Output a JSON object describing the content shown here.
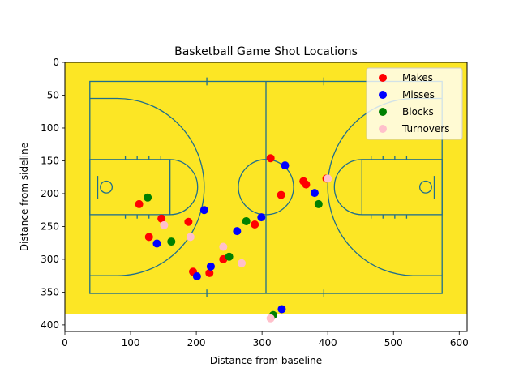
{
  "chart_data": {
    "type": "scatter",
    "title": "Basketball Game Shot Locations",
    "xlabel": "Distance from baseline",
    "ylabel": "Distance from sideline",
    "xlim": [
      0,
      612
    ],
    "ylim": [
      410,
      0
    ],
    "x_ticks": [
      0,
      100,
      200,
      300,
      400,
      500,
      600
    ],
    "y_ticks": [
      0,
      50,
      100,
      150,
      200,
      250,
      300,
      350,
      400
    ],
    "background_color": "#fce625",
    "court_line_color": "#1f6e8c",
    "court_extent": {
      "x": [
        0,
        612
      ],
      "y": [
        0,
        384
      ]
    },
    "legend_position": "top-right",
    "grid": false,
    "series": [
      {
        "name": "Makes",
        "color": "#ff0000",
        "points": [
          [
            113,
            216
          ],
          [
            128,
            266
          ],
          [
            147,
            238
          ],
          [
            188,
            243
          ],
          [
            195,
            319
          ],
          [
            220,
            321
          ],
          [
            241,
            300
          ],
          [
            289,
            247
          ],
          [
            313,
            146
          ],
          [
            329,
            202
          ],
          [
            363,
            181
          ],
          [
            367,
            186
          ],
          [
            398,
            177
          ]
        ]
      },
      {
        "name": "Misses",
        "color": "#0000ff",
        "points": [
          [
            140,
            276
          ],
          [
            201,
            326
          ],
          [
            212,
            225
          ],
          [
            222,
            311
          ],
          [
            262,
            257
          ],
          [
            299,
            236
          ],
          [
            335,
            157
          ],
          [
            380,
            199
          ],
          [
            330,
            376
          ]
        ]
      },
      {
        "name": "Blocks",
        "color": "#008000",
        "points": [
          [
            126,
            206
          ],
          [
            162,
            273
          ],
          [
            250,
            296
          ],
          [
            276,
            242
          ],
          [
            386,
            216
          ],
          [
            317,
            385
          ]
        ]
      },
      {
        "name": "Turnovers",
        "color": "#ffc0cb",
        "points": [
          [
            151,
            248
          ],
          [
            191,
            266
          ],
          [
            241,
            281
          ],
          [
            269,
            306
          ],
          [
            400,
            177
          ],
          [
            313,
            390
          ]
        ]
      }
    ]
  }
}
